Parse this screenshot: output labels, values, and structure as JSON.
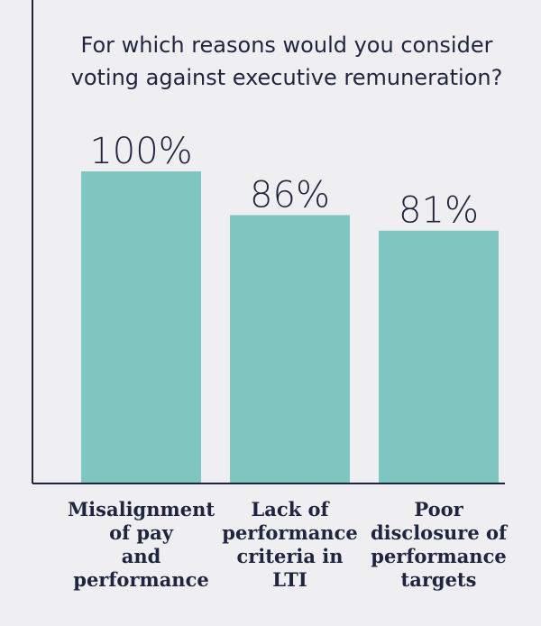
{
  "chart_data": {
    "type": "bar",
    "title": "For which reasons would you consider voting against executive remuneration?",
    "title_lines": [
      "For which reasons would you consider",
      "voting against executive remuneration?"
    ],
    "categories": [
      "Misalignment of pay and performance",
      "Lack of performance criteria in LTI",
      "Poor disclosure of performance targets"
    ],
    "category_lines": [
      [
        "Misalignment",
        "of pay",
        "and",
        "performance"
      ],
      [
        "Lack of",
        "performance",
        "criteria in",
        "LTI"
      ],
      [
        "Poor",
        "disclosure of",
        "performance",
        "targets"
      ]
    ],
    "values": [
      100,
      86,
      81
    ],
    "value_labels": [
      "100%",
      "86%",
      "81%"
    ],
    "unit": "%",
    "ylim": [
      0,
      100
    ],
    "xlabel": "",
    "ylabel": "",
    "grid": false,
    "colors": {
      "bar": "#7fc6c0",
      "axis": "#1f2540",
      "text": "#1f2540",
      "background": "#efeff1"
    }
  }
}
